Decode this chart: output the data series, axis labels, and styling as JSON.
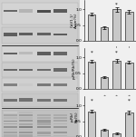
{
  "chart_A": {
    "bars": [
      0.85,
      0.42,
      1.0,
      0.92
    ],
    "bar_colors": [
      "#c8c8c8",
      "#c8c8c8",
      "#c8c8c8",
      "#c8c8c8"
    ],
    "error": [
      0.05,
      0.04,
      0.07,
      0.05
    ],
    "xlabel_top": [
      "–",
      "–",
      "I",
      "I"
    ],
    "xlabel_bot": [
      "–",
      "I",
      "–",
      "I"
    ],
    "ylabel": "CaV1.1/\nActin(%)",
    "ylim": [
      0,
      1.3
    ],
    "yticks": [
      0,
      0.5,
      1.0
    ],
    "stars": [
      [
        2,
        1.12,
        "*"
      ]
    ]
  },
  "chart_B": {
    "bars": [
      0.88,
      0.38,
      0.9,
      0.85
    ],
    "bar_colors": [
      "#c8c8c8",
      "#c8c8c8",
      "#c8c8c8",
      "#c8c8c8"
    ],
    "error": [
      0.05,
      0.03,
      0.06,
      0.05
    ],
    "xlabel_top": [
      "–",
      "+",
      "+",
      "+"
    ],
    "xlabel_bot": [
      "–",
      "–",
      "–",
      "+"
    ],
    "ylabel": "p-Rb/Rb(%)",
    "ylim": [
      0,
      1.3
    ],
    "yticks": [
      0,
      0.5,
      1.0
    ],
    "stars": [
      [
        0,
        1.12,
        "*"
      ],
      [
        2,
        1.12,
        "*"
      ]
    ]
  },
  "chart_C": {
    "bars": [
      0.82,
      0.22,
      0.12,
      0.78
    ],
    "bar_colors": [
      "#c8c8c8",
      "#c8c8c8",
      "#c8c8c8",
      "#c8c8c8"
    ],
    "error": [
      0.05,
      0.03,
      0.02,
      0.06
    ],
    "xlabel_top": [
      "–",
      "+",
      "+",
      "+"
    ],
    "xlabel_bot": [
      "–",
      "–",
      "–",
      "+"
    ],
    "ylabel": "p-Rb/\nRb(%)",
    "ylim": [
      0,
      1.3
    ],
    "yticks": [
      0,
      0.5,
      1.0
    ],
    "stars": [
      [
        0,
        1.12,
        "*"
      ],
      [
        3,
        1.12,
        "*"
      ]
    ]
  },
  "figure_bg": "#f0f0f0"
}
